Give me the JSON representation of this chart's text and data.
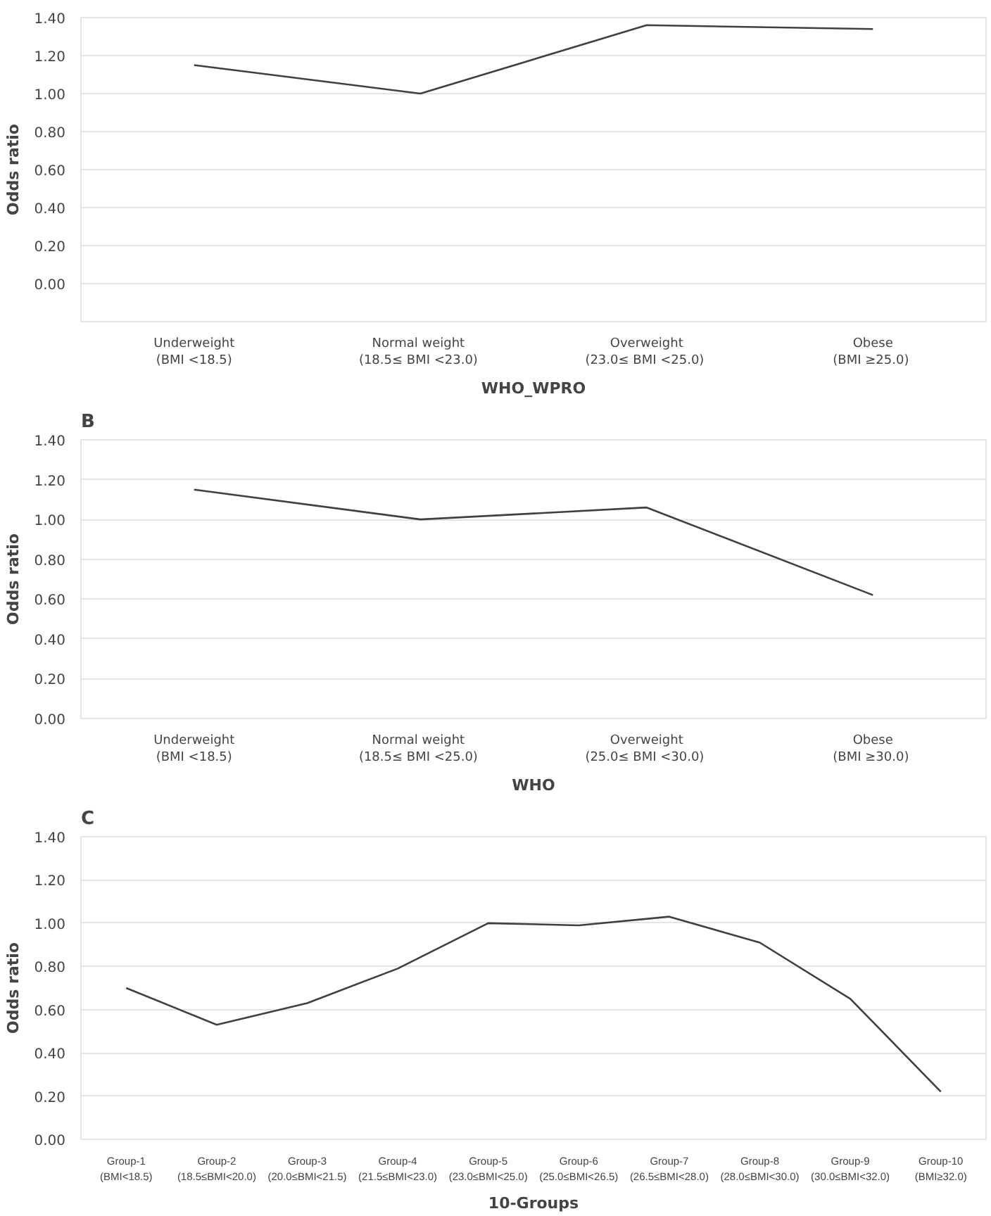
{
  "chart_data": [
    {
      "type": "line",
      "xlabel": "WHO_WPRO",
      "ylabel": "Odds ratio",
      "categories": [
        "Underweight\n(BMI <18.5)",
        "Normal  weight\n(18.5≤  BMI <23.0)",
        "Overweight\n(23.0≤  BMI <25.0)",
        "Obese\n(BMI  ≥25.0)"
      ],
      "series": [
        {
          "color": "#404040",
          "values": [
            1.15,
            1.0,
            1.36,
            1.34
          ]
        }
      ],
      "ylim": [
        -0.2,
        1.4
      ],
      "yticks": [
        {
          "value": -0.2,
          "label": null
        },
        {
          "value": 0,
          "label": "0.00"
        },
        {
          "value": 0.2,
          "label": "0.20"
        },
        {
          "value": 0.4,
          "label": "0.40"
        },
        {
          "value": 0.6,
          "label": "0.60"
        },
        {
          "value": 0.8,
          "label": "0.80"
        },
        {
          "value": 1.0,
          "label": "1.00"
        },
        {
          "value": 1.2,
          "label": "1.20"
        },
        {
          "value": 1.4,
          "label": "1.40"
        }
      ],
      "grid": "y"
    },
    {
      "type": "line",
      "title": "B",
      "xlabel": "WHO",
      "ylabel": "Odds ratio",
      "categories": [
        "Underweight\n(BMI <18.5)",
        "Normal  weight\n(18.5≤  BMI <25.0)",
        "Overweight\n(25.0≤  BMI <30.0)",
        "Obese\n(BMI  ≥30.0)"
      ],
      "series": [
        {
          "color": "#404040",
          "values": [
            1.15,
            1.0,
            1.06,
            0.62
          ]
        }
      ],
      "ylim": [
        0,
        1.4
      ],
      "yticks": [
        {
          "value": 0,
          "label": "0.00"
        },
        {
          "value": 0.2,
          "label": "0.20"
        },
        {
          "value": 0.4,
          "label": "0.40"
        },
        {
          "value": 0.6,
          "label": "0.60"
        },
        {
          "value": 0.8,
          "label": "0.80"
        },
        {
          "value": 1.0,
          "label": "1.00"
        },
        {
          "value": 1.2,
          "label": "1.20"
        },
        {
          "value": 1.4,
          "label": "1.40"
        }
      ],
      "grid": "y"
    },
    {
      "type": "line",
      "title": "C",
      "xlabel": "10-Groups",
      "ylabel": "Odds ratio",
      "categories": [
        "Group-1\n(BMI<18.5)",
        "Group-2\n(18.5≤BMI<20.0)",
        "Group-3\n(20.0≤BMI<21.5)",
        "Group-4\n(21.5≤BMI<23.0)",
        "Group-5\n(23.0≤BMI<25.0)",
        "Group-6\n(25.0≤BMI<26.5)",
        "Group-7\n(26.5≤BMI<28.0)",
        "Group-8\n(28.0≤BMI<30.0)",
        "Group-9\n(30.0≤BMI<32.0)",
        "Group-10\n(BMI≥32.0)"
      ],
      "series": [
        {
          "color": "#404040",
          "values": [
            0.7,
            0.53,
            0.63,
            0.79,
            1.0,
            0.99,
            1.03,
            0.91,
            0.65,
            0.22
          ]
        }
      ],
      "ylim": [
        0,
        1.4
      ],
      "yticks": [
        {
          "value": 0,
          "label": "0.00"
        },
        {
          "value": 0.2,
          "label": "0.20"
        },
        {
          "value": 0.4,
          "label": "0.40"
        },
        {
          "value": 0.6,
          "label": "0.60"
        },
        {
          "value": 0.8,
          "label": "0.80"
        },
        {
          "value": 1.0,
          "label": "1.00"
        },
        {
          "value": 1.2,
          "label": "1.20"
        },
        {
          "value": 1.4,
          "label": "1.40"
        }
      ],
      "grid": "y"
    }
  ]
}
